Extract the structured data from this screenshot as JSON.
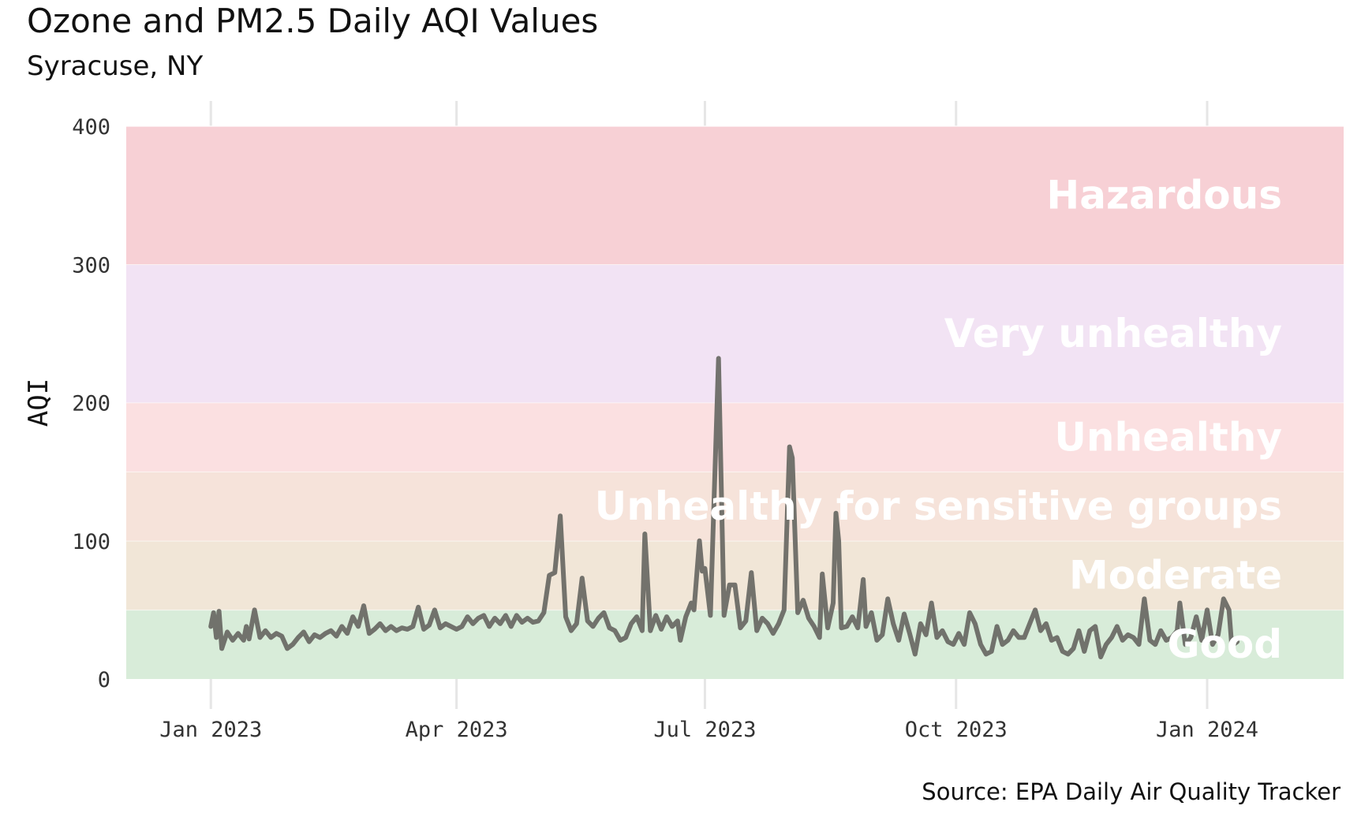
{
  "chart_data": {
    "type": "line",
    "title": "Ozone and PM2.5 Daily AQI Values",
    "subtitle": "Syracuse, NY",
    "source": "Source: EPA Daily Air Quality Tracker",
    "ylabel": "AQI",
    "xlabel": "",
    "ylim": [
      0,
      400
    ],
    "xlim": [
      "2022-12-01",
      "2024-02-20"
    ],
    "y_ticks": [
      0,
      100,
      200,
      300,
      400
    ],
    "y_tick_labels": [
      "0",
      "100",
      "200",
      "300",
      "400"
    ],
    "x_ticks": [
      "2023-01-01",
      "2023-04-01",
      "2023-07-01",
      "2023-10-01",
      "2024-01-01"
    ],
    "x_tick_labels": [
      "Jan 2023",
      "Apr 2023",
      "Jul 2023",
      "Oct 2023",
      "Jan 2024"
    ],
    "grid": true,
    "line_color": "#6b6b66",
    "bands": [
      {
        "label": "Good",
        "from": 0,
        "to": 50,
        "color": "#d8ecd9"
      },
      {
        "label": "Moderate",
        "from": 50,
        "to": 100,
        "color": "#f1e6d7"
      },
      {
        "label": "Unhealthy for sensitive groups",
        "from": 100,
        "to": 150,
        "color": "#f6e3da"
      },
      {
        "label": "Unhealthy",
        "from": 150,
        "to": 200,
        "color": "#fbe0e1"
      },
      {
        "label": "Very unhealthy",
        "from": 200,
        "to": 300,
        "color": "#f2e3f4"
      },
      {
        "label": "Hazardous",
        "from": 300,
        "to": 400,
        "color": "#f7d0d5"
      }
    ],
    "series": [
      {
        "points": [
          [
            "2023-01-01",
            38
          ],
          [
            "2023-01-02",
            48
          ],
          [
            "2023-01-03",
            30
          ],
          [
            "2023-01-04",
            49
          ],
          [
            "2023-01-05",
            22
          ],
          [
            "2023-01-07",
            34
          ],
          [
            "2023-01-09",
            28
          ],
          [
            "2023-01-11",
            33
          ],
          [
            "2023-01-13",
            28
          ],
          [
            "2023-01-14",
            38
          ],
          [
            "2023-01-15",
            29
          ],
          [
            "2023-01-17",
            50
          ],
          [
            "2023-01-19",
            30
          ],
          [
            "2023-01-21",
            35
          ],
          [
            "2023-01-23",
            30
          ],
          [
            "2023-01-25",
            33
          ],
          [
            "2023-01-27",
            31
          ],
          [
            "2023-01-29",
            22
          ],
          [
            "2023-01-31",
            25
          ],
          [
            "2023-02-02",
            30
          ],
          [
            "2023-02-04",
            34
          ],
          [
            "2023-02-06",
            27
          ],
          [
            "2023-02-08",
            32
          ],
          [
            "2023-02-10",
            30
          ],
          [
            "2023-02-12",
            33
          ],
          [
            "2023-02-14",
            35
          ],
          [
            "2023-02-16",
            31
          ],
          [
            "2023-02-18",
            38
          ],
          [
            "2023-02-20",
            33
          ],
          [
            "2023-02-22",
            45
          ],
          [
            "2023-02-24",
            38
          ],
          [
            "2023-02-26",
            53
          ],
          [
            "2023-02-28",
            33
          ],
          [
            "2023-03-02",
            36
          ],
          [
            "2023-03-04",
            40
          ],
          [
            "2023-03-06",
            35
          ],
          [
            "2023-03-08",
            38
          ],
          [
            "2023-03-10",
            35
          ],
          [
            "2023-03-12",
            37
          ],
          [
            "2023-03-14",
            36
          ],
          [
            "2023-03-16",
            38
          ],
          [
            "2023-03-18",
            52
          ],
          [
            "2023-03-20",
            36
          ],
          [
            "2023-03-22",
            39
          ],
          [
            "2023-03-24",
            50
          ],
          [
            "2023-03-26",
            37
          ],
          [
            "2023-03-28",
            40
          ],
          [
            "2023-03-30",
            38
          ],
          [
            "2023-04-01",
            36
          ],
          [
            "2023-04-03",
            38
          ],
          [
            "2023-04-05",
            45
          ],
          [
            "2023-04-07",
            40
          ],
          [
            "2023-04-09",
            44
          ],
          [
            "2023-04-11",
            46
          ],
          [
            "2023-04-13",
            38
          ],
          [
            "2023-04-15",
            44
          ],
          [
            "2023-04-17",
            40
          ],
          [
            "2023-04-19",
            46
          ],
          [
            "2023-04-21",
            38
          ],
          [
            "2023-04-23",
            46
          ],
          [
            "2023-04-25",
            41
          ],
          [
            "2023-04-27",
            44
          ],
          [
            "2023-04-29",
            41
          ],
          [
            "2023-05-01",
            42
          ],
          [
            "2023-05-03",
            48
          ],
          [
            "2023-05-05",
            75
          ],
          [
            "2023-05-07",
            77
          ],
          [
            "2023-05-09",
            118
          ],
          [
            "2023-05-11",
            45
          ],
          [
            "2023-05-13",
            35
          ],
          [
            "2023-05-15",
            40
          ],
          [
            "2023-05-17",
            73
          ],
          [
            "2023-05-19",
            42
          ],
          [
            "2023-05-21",
            38
          ],
          [
            "2023-05-23",
            44
          ],
          [
            "2023-05-25",
            48
          ],
          [
            "2023-05-27",
            37
          ],
          [
            "2023-05-29",
            35
          ],
          [
            "2023-05-31",
            28
          ],
          [
            "2023-06-02",
            30
          ],
          [
            "2023-06-04",
            40
          ],
          [
            "2023-06-06",
            45
          ],
          [
            "2023-06-08",
            35
          ],
          [
            "2023-06-09",
            105
          ],
          [
            "2023-06-11",
            35
          ],
          [
            "2023-06-13",
            46
          ],
          [
            "2023-06-15",
            36
          ],
          [
            "2023-06-17",
            45
          ],
          [
            "2023-06-19",
            38
          ],
          [
            "2023-06-21",
            42
          ],
          [
            "2023-06-22",
            28
          ],
          [
            "2023-06-24",
            45
          ],
          [
            "2023-06-26",
            55
          ],
          [
            "2023-06-27",
            50
          ],
          [
            "2023-06-29",
            100
          ],
          [
            "2023-06-30",
            78
          ],
          [
            "2023-07-01",
            80
          ],
          [
            "2023-07-03",
            46
          ],
          [
            "2023-07-06",
            232
          ],
          [
            "2023-07-08",
            46
          ],
          [
            "2023-07-10",
            68
          ],
          [
            "2023-07-12",
            68
          ],
          [
            "2023-07-14",
            37
          ],
          [
            "2023-07-16",
            42
          ],
          [
            "2023-07-18",
            77
          ],
          [
            "2023-07-20",
            35
          ],
          [
            "2023-07-22",
            44
          ],
          [
            "2023-07-24",
            40
          ],
          [
            "2023-07-26",
            33
          ],
          [
            "2023-07-28",
            40
          ],
          [
            "2023-07-30",
            50
          ],
          [
            "2023-08-01",
            168
          ],
          [
            "2023-08-02",
            160
          ],
          [
            "2023-08-04",
            48
          ],
          [
            "2023-08-06",
            57
          ],
          [
            "2023-08-08",
            44
          ],
          [
            "2023-08-10",
            38
          ],
          [
            "2023-08-12",
            30
          ],
          [
            "2023-08-13",
            76
          ],
          [
            "2023-08-15",
            37
          ],
          [
            "2023-08-17",
            55
          ],
          [
            "2023-08-18",
            120
          ],
          [
            "2023-08-19",
            100
          ],
          [
            "2023-08-20",
            37
          ],
          [
            "2023-08-22",
            38
          ],
          [
            "2023-08-24",
            45
          ],
          [
            "2023-08-26",
            37
          ],
          [
            "2023-08-28",
            72
          ],
          [
            "2023-08-29",
            38
          ],
          [
            "2023-08-31",
            48
          ],
          [
            "2023-09-02",
            28
          ],
          [
            "2023-09-04",
            32
          ],
          [
            "2023-09-06",
            58
          ],
          [
            "2023-09-08",
            40
          ],
          [
            "2023-09-10",
            28
          ],
          [
            "2023-09-12",
            47
          ],
          [
            "2023-09-14",
            33
          ],
          [
            "2023-09-16",
            18
          ],
          [
            "2023-09-18",
            40
          ],
          [
            "2023-09-20",
            32
          ],
          [
            "2023-09-22",
            55
          ],
          [
            "2023-09-24",
            30
          ],
          [
            "2023-09-26",
            35
          ],
          [
            "2023-09-28",
            27
          ],
          [
            "2023-09-30",
            25
          ],
          [
            "2023-10-02",
            33
          ],
          [
            "2023-10-04",
            25
          ],
          [
            "2023-10-06",
            48
          ],
          [
            "2023-10-08",
            40
          ],
          [
            "2023-10-10",
            25
          ],
          [
            "2023-10-12",
            18
          ],
          [
            "2023-10-14",
            20
          ],
          [
            "2023-10-16",
            38
          ],
          [
            "2023-10-18",
            25
          ],
          [
            "2023-10-20",
            28
          ],
          [
            "2023-10-22",
            35
          ],
          [
            "2023-10-24",
            30
          ],
          [
            "2023-10-26",
            30
          ],
          [
            "2023-10-28",
            40
          ],
          [
            "2023-10-30",
            50
          ],
          [
            "2023-11-01",
            35
          ],
          [
            "2023-11-03",
            40
          ],
          [
            "2023-11-05",
            28
          ],
          [
            "2023-11-07",
            30
          ],
          [
            "2023-11-09",
            20
          ],
          [
            "2023-11-11",
            18
          ],
          [
            "2023-11-13",
            22
          ],
          [
            "2023-11-15",
            35
          ],
          [
            "2023-11-17",
            20
          ],
          [
            "2023-11-19",
            35
          ],
          [
            "2023-11-21",
            38
          ],
          [
            "2023-11-23",
            16
          ],
          [
            "2023-11-25",
            25
          ],
          [
            "2023-11-27",
            30
          ],
          [
            "2023-11-29",
            38
          ],
          [
            "2023-12-01",
            28
          ],
          [
            "2023-12-03",
            32
          ],
          [
            "2023-12-05",
            30
          ],
          [
            "2023-12-07",
            25
          ],
          [
            "2023-12-09",
            58
          ],
          [
            "2023-12-11",
            28
          ],
          [
            "2023-12-13",
            25
          ],
          [
            "2023-12-15",
            35
          ],
          [
            "2023-12-17",
            28
          ],
          [
            "2023-12-19",
            30
          ],
          [
            "2023-12-21",
            35
          ],
          [
            "2023-12-22",
            55
          ],
          [
            "2023-12-24",
            25
          ],
          [
            "2023-12-26",
            30
          ],
          [
            "2023-12-28",
            45
          ],
          [
            "2023-12-30",
            28
          ],
          [
            "2024-01-01",
            50
          ],
          [
            "2024-01-03",
            25
          ],
          [
            "2024-01-05",
            32
          ],
          [
            "2024-01-07",
            58
          ],
          [
            "2024-01-09",
            50
          ],
          [
            "2024-01-10",
            24
          ],
          [
            "2024-01-12",
            27
          ]
        ]
      }
    ]
  }
}
